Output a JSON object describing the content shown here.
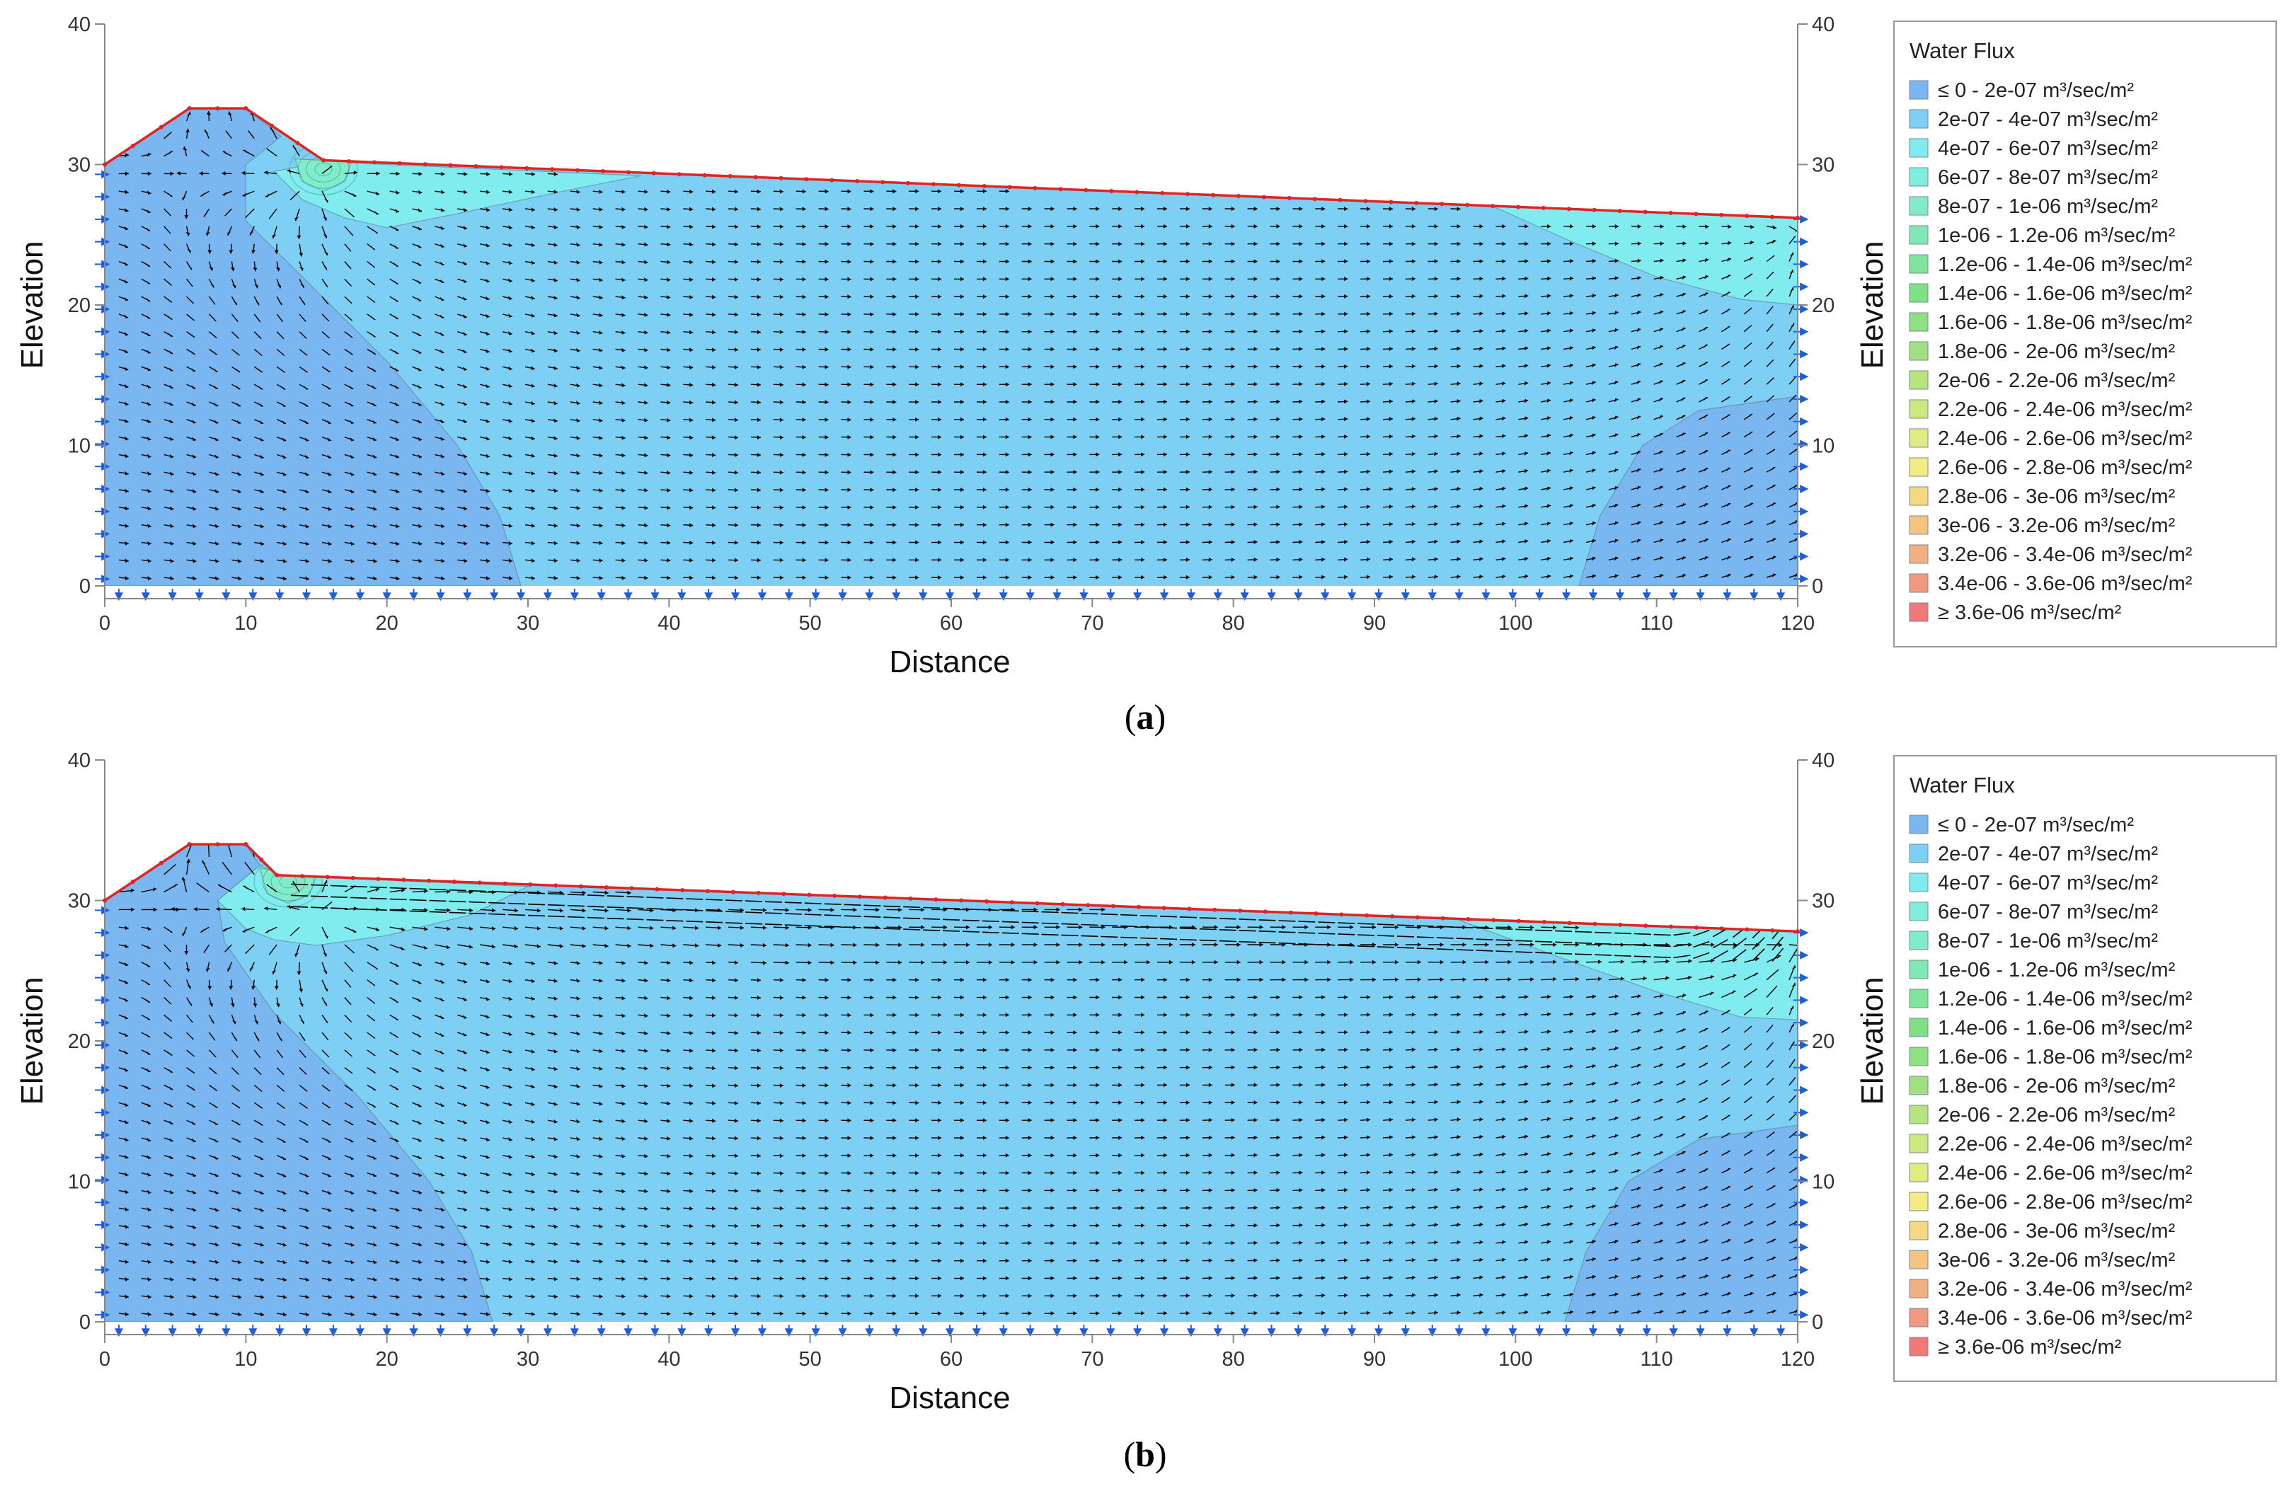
{
  "chart_data": [
    {
      "type": "heatmap",
      "panel_label": "a",
      "xlabel": "Distance",
      "ylabel": "Elevation",
      "xlim": [
        0,
        120
      ],
      "ylim": [
        0,
        40
      ],
      "x_ticks": [
        0,
        10,
        20,
        30,
        40,
        50,
        60,
        70,
        80,
        90,
        100,
        110,
        120
      ],
      "y_ticks": [
        0,
        10,
        20,
        30,
        40
      ],
      "grid": false,
      "domain_outline": [
        [
          0,
          0
        ],
        [
          0,
          30
        ],
        [
          6,
          34
        ],
        [
          10,
          34
        ],
        [
          15.5,
          30.3
        ],
        [
          120,
          26.2
        ],
        [
          120,
          0
        ]
      ],
      "phreatic_line": [
        [
          15.5,
          30.2
        ],
        [
          120,
          26.2
        ]
      ],
      "zones": [
        {
          "legend_index": 0,
          "polygon": [
            [
              0,
              0
            ],
            [
              0,
              30
            ],
            [
              6,
              34
            ],
            [
              10,
              34
            ],
            [
              12.5,
              32
            ],
            [
              10,
              30
            ],
            [
              10,
              26
            ],
            [
              14,
              22
            ],
            [
              20,
              16
            ],
            [
              25,
              10
            ],
            [
              28,
              5
            ],
            [
              29.5,
              0
            ]
          ]
        },
        {
          "legend_index": 0,
          "polygon": [
            [
              104.5,
              0
            ],
            [
              106,
              5
            ],
            [
              109,
              10
            ],
            [
              113,
              12.5
            ],
            [
              120,
              13.5
            ],
            [
              120,
              0
            ]
          ]
        },
        {
          "legend_index": 2,
          "polygon": [
            [
              15.5,
              30.2
            ],
            [
              38,
              29.2
            ],
            [
              32,
              28
            ],
            [
              25,
              26.5
            ],
            [
              20,
              25.5
            ],
            [
              17,
              26.2
            ],
            [
              14,
              27.5
            ],
            [
              12,
              29.5
            ]
          ]
        },
        {
          "legend_index": 2,
          "polygon": [
            [
              98,
              27.2
            ],
            [
              120,
              26.2
            ],
            [
              120,
              20
            ],
            [
              116,
              20.4
            ],
            [
              110,
              22
            ],
            [
              104,
              24.5
            ]
          ]
        },
        {
          "legend_index": 4,
          "polygon": [
            [
              13.5,
              30.4
            ],
            [
              17.5,
              30.2
            ],
            [
              17,
              28.8
            ],
            [
              15.5,
              28.1
            ],
            [
              14,
              28.8
            ]
          ]
        }
      ],
      "flux_vectors": {
        "concentration_zone_x": [
          10,
          20
        ],
        "concentration_zone_label": ""
      }
    },
    {
      "type": "heatmap",
      "panel_label": "b",
      "xlabel": "Distance",
      "ylabel": "Elevation",
      "xlim": [
        0,
        120
      ],
      "ylim": [
        0,
        40
      ],
      "x_ticks": [
        0,
        10,
        20,
        30,
        40,
        50,
        60,
        70,
        80,
        90,
        100,
        110,
        120
      ],
      "y_ticks": [
        0,
        10,
        20,
        30,
        40
      ],
      "grid": false,
      "domain_outline": [
        [
          0,
          0
        ],
        [
          0,
          30
        ],
        [
          6,
          34
        ],
        [
          10,
          34
        ],
        [
          12.2,
          31.8
        ],
        [
          120,
          27.8
        ],
        [
          120,
          0
        ]
      ],
      "phreatic_line": [
        [
          12.2,
          31.8
        ],
        [
          120,
          27.8
        ]
      ],
      "zones": [
        {
          "legend_index": 0,
          "polygon": [
            [
              0,
              0
            ],
            [
              0,
              30
            ],
            [
              6,
              34
            ],
            [
              10,
              34
            ],
            [
              11,
              32.5
            ],
            [
              8,
              30
            ],
            [
              8.5,
              27
            ],
            [
              12,
              22
            ],
            [
              18,
              16
            ],
            [
              23,
              10
            ],
            [
              26,
              5
            ],
            [
              27.5,
              0
            ]
          ]
        },
        {
          "legend_index": 0,
          "polygon": [
            [
              103.5,
              0
            ],
            [
              105,
              5
            ],
            [
              108,
              10
            ],
            [
              113,
              13
            ],
            [
              120,
              14
            ],
            [
              120,
              0
            ]
          ]
        },
        {
          "legend_index": 2,
          "polygon": [
            [
              12.2,
              31.8
            ],
            [
              30,
              31
            ],
            [
              26,
              29
            ],
            [
              20,
              27.5
            ],
            [
              15,
              26.8
            ],
            [
              12,
              27.2
            ],
            [
              10,
              28
            ],
            [
              8,
              30
            ],
            [
              11,
              32.5
            ]
          ]
        },
        {
          "legend_index": 2,
          "polygon": [
            [
              96,
              28.6
            ],
            [
              120,
              27.8
            ],
            [
              120,
              21.5
            ],
            [
              116,
              21.7
            ],
            [
              110,
              23.5
            ],
            [
              103,
              26
            ]
          ]
        },
        {
          "legend_index": 4,
          "polygon": [
            [
              11,
              32.3
            ],
            [
              15,
              31.7
            ],
            [
              14.5,
              30.4
            ],
            [
              13,
              29.8
            ],
            [
              11.5,
              30.5
            ]
          ]
        }
      ],
      "flux_vectors": {
        "concentration_zone_x": [
          10,
          20
        ],
        "concentration_zone_label": ""
      }
    }
  ],
  "legend": {
    "title": "Water Flux",
    "items": [
      {
        "label": "≤ 0 - 2e-07 m³/sec/m²",
        "color": "#7ab6f0"
      },
      {
        "label": "2e-07 - 4e-07 m³/sec/m²",
        "color": "#7dd0f4"
      },
      {
        "label": "4e-07 - 6e-07 m³/sec/m²",
        "color": "#80ecf0"
      },
      {
        "label": "6e-07 - 8e-07 m³/sec/m²",
        "color": "#80eedc"
      },
      {
        "label": "8e-07 - 1e-06 m³/sec/m²",
        "color": "#80eccc"
      },
      {
        "label": "1e-06 - 1.2e-06 m³/sec/m²",
        "color": "#80e8b4"
      },
      {
        "label": "1.2e-06 - 1.4e-06 m³/sec/m²",
        "color": "#80e49c"
      },
      {
        "label": "1.4e-06 - 1.6e-06 m³/sec/m²",
        "color": "#80e084"
      },
      {
        "label": "1.6e-06 - 1.8e-06 m³/sec/m²",
        "color": "#8ee080"
      },
      {
        "label": "1.8e-06 - 2e-06 m³/sec/m²",
        "color": "#a0e080"
      },
      {
        "label": "2e-06 - 2.2e-06 m³/sec/m²",
        "color": "#b8e480"
      },
      {
        "label": "2.2e-06 - 2.4e-06 m³/sec/m²",
        "color": "#cce880"
      },
      {
        "label": "2.4e-06 - 2.6e-06 m³/sec/m²",
        "color": "#e0ec80"
      },
      {
        "label": "2.6e-06 - 2.8e-06 m³/sec/m²",
        "color": "#f4ec80"
      },
      {
        "label": "2.8e-06 - 3e-06 m³/sec/m²",
        "color": "#f6d880"
      },
      {
        "label": "3e-06 - 3.2e-06 m³/sec/m²",
        "color": "#f4c480"
      },
      {
        "label": "3.2e-06 - 3.4e-06 m³/sec/m²",
        "color": "#f2b080"
      },
      {
        "label": "3.4e-06 - 3.6e-06 m³/sec/m²",
        "color": "#f09880"
      },
      {
        "label": "≥ 3.6e-06 m³/sec/m²",
        "color": "#f07878"
      }
    ]
  },
  "colors": {
    "outline": "#e02424",
    "boundary_arrow": "#1a5ee0",
    "vector": "#000000",
    "axis": "#888888"
  }
}
